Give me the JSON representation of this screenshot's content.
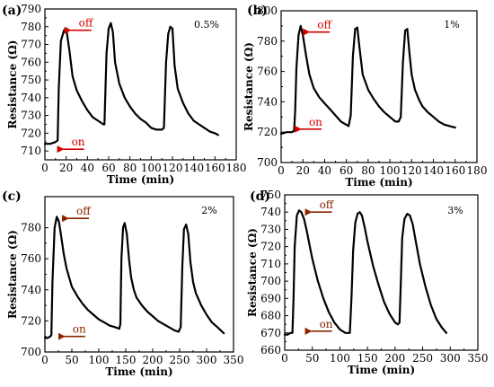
{
  "chart_data": [
    {
      "type": "line",
      "panel_label": "(a)",
      "concentration": "0.5%",
      "xlabel": "Time (min)",
      "ylabel": "Resistance (Ω)",
      "xlim": [
        0,
        180
      ],
      "ylim": [
        705,
        790
      ],
      "xticks": [
        0,
        20,
        40,
        60,
        80,
        100,
        120,
        140,
        160,
        180
      ],
      "yticks": [
        710,
        720,
        730,
        740,
        750,
        760,
        770,
        780,
        790
      ],
      "annotations": [
        {
          "text": "off",
          "x": 20,
          "y": 778,
          "color": "#d40000"
        },
        {
          "text": "on",
          "x": 14,
          "y": 711,
          "color": "#d40000"
        }
      ],
      "series": [
        {
          "x": [
            0,
            5,
            10,
            12,
            13,
            15,
            18,
            20,
            23,
            26,
            30,
            35,
            40,
            45,
            50,
            55,
            56,
            58,
            60,
            62,
            64,
            66,
            70,
            75,
            80,
            85,
            90,
            95,
            100,
            105,
            110,
            112,
            114,
            116,
            118,
            120,
            122,
            125,
            130,
            135,
            140,
            145,
            150,
            155,
            160,
            163
          ],
          "y": [
            714,
            714,
            715,
            716,
            745,
            772,
            778,
            779,
            767,
            752,
            744,
            738,
            733,
            729,
            727,
            725,
            725,
            765,
            779,
            782,
            777,
            760,
            748,
            740,
            735,
            731,
            728,
            726,
            723,
            722,
            722,
            723,
            760,
            776,
            780,
            779,
            758,
            745,
            737,
            731,
            727,
            725,
            723,
            721,
            720,
            719
          ]
        }
      ]
    },
    {
      "type": "line",
      "panel_label": "(b)",
      "concentration": "1%",
      "xlabel": "Time (min)",
      "ylabel": "Resistance (Ω)",
      "xlim": [
        0,
        180
      ],
      "ylim": [
        700,
        800
      ],
      "xticks": [
        0,
        20,
        40,
        60,
        80,
        100,
        120,
        140,
        160,
        180
      ],
      "yticks": [
        700,
        720,
        740,
        760,
        780,
        800
      ],
      "annotations": [
        {
          "text": "off",
          "x": 20,
          "y": 786,
          "color": "#d40000"
        },
        {
          "text": "on",
          "x": 14,
          "y": 722,
          "color": "#d40000"
        }
      ],
      "series": [
        {
          "x": [
            0,
            5,
            10,
            12,
            13,
            14,
            16,
            18,
            20,
            23,
            26,
            30,
            35,
            40,
            45,
            50,
            55,
            62,
            64,
            66,
            68,
            70,
            72,
            75,
            80,
            85,
            90,
            95,
            100,
            105,
            108,
            110,
            112,
            114,
            116,
            118,
            120,
            123,
            127,
            130,
            135,
            140,
            145,
            150,
            155,
            160
          ],
          "y": [
            719,
            720,
            720,
            721,
            735,
            762,
            784,
            790,
            784,
            770,
            758,
            749,
            743,
            739,
            735,
            731,
            727,
            724,
            731,
            770,
            788,
            789,
            776,
            758,
            748,
            742,
            737,
            733,
            730,
            727,
            727,
            730,
            766,
            787,
            788,
            772,
            758,
            748,
            741,
            737,
            733,
            730,
            727,
            725,
            724,
            723
          ]
        }
      ]
    },
    {
      "type": "line",
      "panel_label": "(c)",
      "concentration": "2%",
      "xlabel": "Time (min)",
      "ylabel": "Resistance (Ω)",
      "xlim": [
        0,
        350
      ],
      "ylim": [
        700,
        800
      ],
      "xticks": [
        0,
        50,
        100,
        150,
        200,
        250,
        300,
        350
      ],
      "yticks": [
        700,
        720,
        740,
        760,
        780
      ],
      "annotations": [
        {
          "text": "off",
          "x": 35,
          "y": 786,
          "color": "#8b2500"
        },
        {
          "text": "on",
          "x": 28,
          "y": 710,
          "color": "#8b2500"
        }
      ],
      "series": [
        {
          "x": [
            0,
            5,
            10,
            12,
            14,
            18,
            22,
            26,
            30,
            35,
            40,
            45,
            50,
            60,
            70,
            80,
            90,
            100,
            110,
            120,
            130,
            138,
            140,
            142,
            145,
            148,
            152,
            156,
            160,
            165,
            170,
            180,
            190,
            200,
            210,
            220,
            230,
            240,
            248,
            252,
            255,
            258,
            262,
            266,
            270,
            275,
            280,
            290,
            300,
            310,
            320,
            332
          ],
          "y": [
            709,
            709,
            710,
            711,
            745,
            780,
            787,
            784,
            775,
            763,
            754,
            748,
            742,
            736,
            731,
            727,
            724,
            721,
            719,
            717,
            716,
            715,
            718,
            760,
            780,
            783,
            776,
            760,
            748,
            740,
            735,
            730,
            726,
            723,
            720,
            718,
            716,
            714,
            713,
            716,
            755,
            779,
            782,
            776,
            758,
            745,
            738,
            730,
            724,
            719,
            716,
            712
          ]
        }
      ]
    },
    {
      "type": "line",
      "panel_label": "(d)",
      "concentration": "3%",
      "xlabel": "Time (min)",
      "ylabel": "Resistance (Ω)",
      "xlim": [
        0,
        350
      ],
      "ylim": [
        660,
        750
      ],
      "xticks": [
        0,
        50,
        100,
        150,
        200,
        250,
        300,
        350
      ],
      "yticks": [
        660,
        670,
        680,
        690,
        700,
        710,
        720,
        730,
        740,
        750
      ],
      "annotations": [
        {
          "text": "off",
          "x": 40,
          "y": 740,
          "color": "#8b2500"
        },
        {
          "text": "on",
          "x": 40,
          "y": 671,
          "color": "#8b2500"
        }
      ],
      "series": [
        {
          "x": [
            0,
            5,
            10,
            14,
            16,
            18,
            22,
            26,
            30,
            35,
            40,
            45,
            50,
            60,
            70,
            80,
            90,
            100,
            110,
            118,
            121,
            124,
            128,
            132,
            136,
            140,
            145,
            150,
            155,
            160,
            170,
            180,
            190,
            200,
            205,
            208,
            210,
            213,
            217,
            222,
            227,
            232,
            237,
            245,
            255,
            265,
            275,
            285,
            293
          ],
          "y": [
            669,
            669,
            670,
            670,
            690,
            720,
            738,
            741,
            740,
            736,
            729,
            721,
            713,
            700,
            690,
            682,
            676,
            672,
            670,
            670,
            690,
            718,
            734,
            739,
            740,
            738,
            731,
            723,
            716,
            709,
            698,
            688,
            681,
            676,
            675,
            676,
            695,
            725,
            736,
            739,
            738,
            733,
            724,
            710,
            697,
            686,
            678,
            673,
            670
          ]
        }
      ]
    }
  ]
}
